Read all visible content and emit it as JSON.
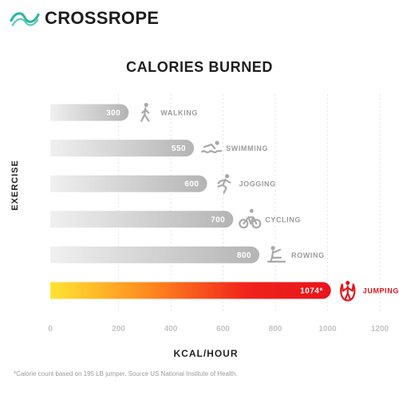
{
  "brand": {
    "name": "CROSSROPE",
    "logo_icon": "crossrope-wave-logo"
  },
  "colors": {
    "accent": "#2bb5a0",
    "bar_gray": "#b8b8b8",
    "bar_gray_light": "#ededed",
    "highlight": "#e8141b",
    "highlight_start": "#ffe433"
  },
  "chart_data": {
    "type": "bar",
    "orientation": "horizontal",
    "title": "CALORIES BURNED",
    "xlabel": "KCAL/HOUR",
    "ylabel": "EXERCISE",
    "categories": [
      "WALKING",
      "SWIMMING",
      "JOGGING",
      "CYCLING",
      "ROWING",
      "JUMPING ROPE"
    ],
    "values": [
      300,
      550,
      600,
      700,
      800,
      1074
    ],
    "value_labels": [
      "300",
      "550",
      "600",
      "700",
      "800",
      "1074*"
    ],
    "icons": [
      "walking-icon",
      "swimming-icon",
      "jogging-icon",
      "cycling-icon",
      "rowing-icon",
      "jumping-rope-icon"
    ],
    "highlighted_category": "JUMPING ROPE",
    "xlim": [
      0,
      1200
    ],
    "xticks": [
      0,
      200,
      400,
      600,
      800,
      1000,
      1200
    ],
    "grid": true
  },
  "footnote": "*Calorie count based on 195 LB jumper. Source US National Institute of Health."
}
